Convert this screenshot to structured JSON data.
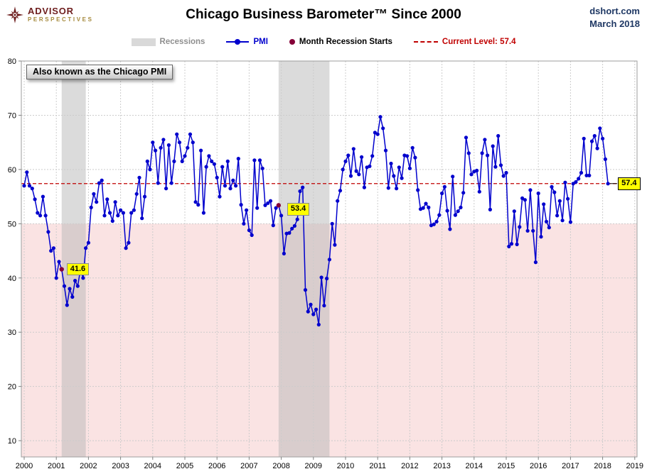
{
  "header": {
    "logo_line1": "ADVISOR",
    "logo_line2": "PERSPECTIVES",
    "title": "Chicago Business Barometer™ Since 2000",
    "source_site": "dshort.com",
    "source_date": "March 2018"
  },
  "legend": {
    "items": [
      {
        "label": "Recessions",
        "swatch": "gray-band"
      },
      {
        "label": "PMI",
        "swatch": "blue-line-with-marker"
      },
      {
        "label": "Month Recession Starts",
        "swatch": "maroon-dot"
      },
      {
        "label": "Current Level: 57.4",
        "swatch": "red-dashed-line"
      }
    ]
  },
  "annotation_note": "Also known as the Chicago PMI",
  "colors": {
    "pmi_line": "#0000CD",
    "recession_band": "#D9D9D9",
    "recession_marker": "#850038",
    "current_level_red": "#C00000",
    "below_50_zone_pink": "#FAE3E3",
    "highlight_yellow": "#FFFF00",
    "source_blue": "#1F3864",
    "logo_maroon": "#6E1E1E",
    "logo_gold": "#A5893B"
  },
  "chart_data": {
    "type": "line",
    "title": "Chicago Business Barometer™ Since 2000",
    "xlabel": "",
    "ylabel": "",
    "ylim": [
      7,
      80
    ],
    "y_ticks": [
      10,
      20,
      30,
      40,
      50,
      60,
      70,
      80
    ],
    "x_ticks": [
      2000,
      2001,
      2002,
      2003,
      2004,
      2005,
      2006,
      2007,
      2008,
      2009,
      2010,
      2011,
      2012,
      2013,
      2014,
      2015,
      2016,
      2017,
      2018,
      2019
    ],
    "grid": true,
    "legend_position": "top",
    "below_level_shading": 50,
    "current_level": 57.4,
    "current_label": "57.4",
    "recessions": [
      {
        "start": 2001.167,
        "end": 2001.917
      },
      {
        "start": 2007.917,
        "end": 2009.5
      }
    ],
    "series": [
      {
        "name": "PMI",
        "start": "2000-01",
        "frequency": "monthly",
        "values": [
          57.0,
          59.5,
          57.0,
          56.5,
          54.5,
          52.0,
          51.5,
          55.0,
          51.5,
          48.5,
          45.0,
          45.5,
          40.0,
          43.0,
          41.6,
          38.5,
          35.0,
          38.0,
          36.5,
          39.5,
          38.5,
          41.5,
          40.0,
          45.5,
          46.5,
          53.0,
          55.5,
          54.0,
          57.5,
          58.0,
          51.5,
          54.5,
          52.0,
          50.5,
          54.0,
          51.5,
          52.5,
          52.0,
          45.5,
          46.5,
          52.0,
          52.5,
          55.5,
          58.5,
          51.0,
          55.0,
          61.5,
          60.0,
          65.0,
          63.5,
          57.5,
          64.0,
          65.5,
          56.5,
          64.5,
          57.5,
          61.5,
          66.5,
          65.0,
          61.5,
          62.5,
          64.0,
          66.5,
          65.0,
          54.0,
          53.5,
          63.5,
          52.0,
          60.5,
          62.5,
          61.5,
          61.0,
          58.5,
          55.0,
          60.5,
          57.0,
          61.5,
          56.5,
          58.0,
          57.0,
          62.0,
          53.5,
          50.0,
          52.5,
          48.8,
          47.9,
          61.7,
          52.9,
          61.7,
          60.2,
          53.4,
          53.8,
          54.2,
          49.7,
          52.9,
          53.4,
          51.5,
          44.5,
          48.2,
          48.3,
          49.1,
          49.6,
          50.8,
          56.0,
          56.7,
          37.8,
          33.8,
          35.1,
          33.3,
          34.2,
          31.4,
          40.1,
          34.9,
          39.9,
          43.4,
          50.0,
          46.1,
          54.2,
          56.1,
          60.0,
          61.5,
          62.6,
          58.8,
          63.8,
          59.7,
          59.1,
          62.3,
          56.7,
          60.4,
          60.6,
          62.5,
          66.8,
          66.5,
          69.7,
          67.6,
          63.5,
          56.6,
          61.1,
          58.8,
          56.5,
          60.4,
          58.4,
          62.6,
          62.5,
          60.2,
          64.0,
          62.2,
          56.2,
          52.7,
          52.9,
          53.7,
          53.0,
          49.7,
          49.9,
          50.4,
          51.6,
          55.6,
          56.8,
          52.4,
          49.0,
          58.7,
          51.6,
          52.3,
          53.0,
          55.7,
          65.9,
          63.0,
          59.1,
          59.6,
          59.8,
          55.9,
          63.0,
          65.5,
          62.6,
          52.6,
          64.3,
          60.5,
          66.2,
          60.8,
          58.8,
          59.4,
          45.8,
          46.3,
          52.3,
          46.2,
          49.4,
          54.7,
          54.4,
          48.7,
          56.2,
          48.7,
          42.9,
          55.6,
          47.6,
          53.6,
          50.4,
          49.3,
          56.8,
          55.8,
          51.5,
          54.2,
          50.6,
          57.6,
          54.6,
          50.3,
          57.4,
          57.7,
          58.3,
          59.4,
          65.7,
          58.9,
          58.9,
          65.2,
          66.2,
          63.9,
          67.6,
          65.7,
          61.9,
          57.4
        ]
      }
    ],
    "recession_start_points": [
      {
        "month": "2001-03",
        "month_index": 14,
        "value": 41.6,
        "label": "41.6"
      },
      {
        "month": "2007-12",
        "month_index": 95,
        "value": 53.4,
        "label": "53.4"
      }
    ]
  }
}
